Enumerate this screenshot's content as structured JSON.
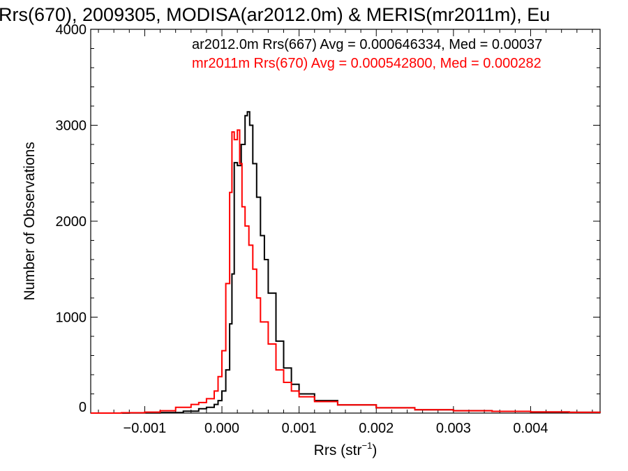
{
  "chart_data": {
    "type": "line",
    "title": "Rrs(670), 2009305, MODISA(ar2012.0m) & MERIS(mr2011m), Eu",
    "xlabel": "Rrs (str",
    "xlabel_sup": "−1",
    "xlabel_close": ")",
    "ylabel": "Number of Observations",
    "xlim": [
      -0.0017,
      0.0049
    ],
    "ylim": [
      0,
      4000
    ],
    "x_ticks": [
      {
        "value": -0.001,
        "label": "−0.001"
      },
      {
        "value": 0.0,
        "label": "0.000"
      },
      {
        "value": 0.001,
        "label": "0.001"
      },
      {
        "value": 0.002,
        "label": "0.002"
      },
      {
        "value": 0.003,
        "label": "0.003"
      },
      {
        "value": 0.004,
        "label": "0.004"
      }
    ],
    "y_ticks": [
      {
        "value": 0,
        "label": "0"
      },
      {
        "value": 1000,
        "label": "1000"
      },
      {
        "value": 2000,
        "label": "2000"
      },
      {
        "value": 3000,
        "label": "3000"
      },
      {
        "value": 4000,
        "label": "4000"
      }
    ],
    "grid": false,
    "series": [
      {
        "label": "ar2012.0m Rrs(667) Avg = 0.000646334, Med = 0.00037",
        "color": "#000000",
        "x": [
          -0.0017,
          -0.0012,
          -0.0008,
          -0.0005,
          -0.0003,
          -0.0002,
          -0.0001,
          -5e-05,
          0.0,
          5e-05,
          0.0001,
          0.00013,
          0.00016,
          0.0002,
          0.00025,
          0.0003,
          0.00033,
          0.00036,
          0.0004,
          0.00045,
          0.0005,
          0.00055,
          0.0006,
          0.0007,
          0.0008,
          0.0009,
          0.001,
          0.0012,
          0.0015,
          0.002,
          0.0025,
          0.003,
          0.0035,
          0.004,
          0.0045,
          0.0049
        ],
        "values": [
          0,
          2,
          5,
          20,
          45,
          60,
          90,
          130,
          230,
          450,
          930,
          1450,
          2610,
          2580,
          2800,
          3100,
          3140,
          3000,
          2600,
          2250,
          1850,
          1600,
          1250,
          750,
          470,
          300,
          200,
          130,
          85,
          55,
          35,
          25,
          18,
          12,
          8,
          5
        ]
      },
      {
        "label": "mr2011m Rrs(670) Avg = 0.000542800, Med = 0.000282",
        "color": "#ff0000",
        "x": [
          -0.0017,
          -0.0013,
          -0.001,
          -0.0008,
          -0.0006,
          -0.0004,
          -0.0003,
          -0.0002,
          -0.0001,
          -5e-05,
          0.0,
          5e-05,
          0.0001,
          0.00013,
          0.00016,
          0.0002,
          0.00023,
          0.00026,
          0.0003,
          0.00035,
          0.0004,
          0.00045,
          0.0005,
          0.0006,
          0.0007,
          0.0008,
          0.0009,
          0.001,
          0.0012,
          0.0015,
          0.002,
          0.0025,
          0.003,
          0.0035,
          0.004,
          0.0045,
          0.0049
        ],
        "values": [
          0,
          4,
          10,
          25,
          60,
          90,
          110,
          150,
          230,
          380,
          650,
          1350,
          2300,
          2930,
          2850,
          2950,
          2600,
          2150,
          1950,
          1750,
          1500,
          1200,
          950,
          720,
          450,
          320,
          230,
          170,
          120,
          85,
          55,
          35,
          25,
          18,
          12,
          8,
          5
        ]
      }
    ]
  }
}
